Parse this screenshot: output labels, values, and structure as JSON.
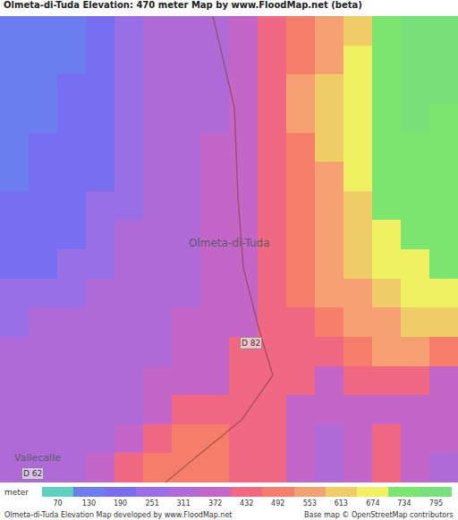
{
  "chart_data": {
    "type": "heatmap",
    "title": "Olmeta-di-Tuda Elevation: 470 meter Map by www.FloodMap.net (beta)",
    "tick_labels": false,
    "cells": [
      [
        100,
        100,
        130,
        190,
        251,
        311,
        311,
        311,
        372,
        432,
        492,
        553,
        613,
        734,
        795,
        795
      ],
      [
        100,
        100,
        130,
        190,
        251,
        311,
        311,
        311,
        372,
        432,
        492,
        553,
        674,
        734,
        795,
        795
      ],
      [
        100,
        130,
        190,
        190,
        251,
        311,
        311,
        311,
        372,
        432,
        553,
        613,
        674,
        734,
        795,
        795
      ],
      [
        100,
        130,
        190,
        190,
        251,
        311,
        311,
        311,
        372,
        432,
        553,
        613,
        674,
        734,
        795,
        734
      ],
      [
        130,
        190,
        190,
        190,
        251,
        311,
        311,
        372,
        372,
        432,
        492,
        613,
        674,
        734,
        734,
        734
      ],
      [
        130,
        190,
        190,
        190,
        251,
        311,
        311,
        372,
        372,
        432,
        492,
        553,
        674,
        734,
        734,
        734
      ],
      [
        190,
        190,
        190,
        251,
        251,
        311,
        311,
        372,
        372,
        432,
        492,
        553,
        613,
        734,
        734,
        734
      ],
      [
        190,
        190,
        190,
        251,
        311,
        311,
        311,
        372,
        372,
        432,
        492,
        553,
        613,
        674,
        734,
        734
      ],
      [
        190,
        190,
        251,
        251,
        311,
        311,
        311,
        372,
        372,
        432,
        492,
        553,
        613,
        674,
        674,
        734
      ],
      [
        251,
        251,
        251,
        311,
        311,
        311,
        311,
        372,
        372,
        432,
        492,
        553,
        553,
        613,
        674,
        674
      ],
      [
        251,
        311,
        311,
        311,
        311,
        311,
        372,
        372,
        372,
        432,
        432,
        492,
        553,
        553,
        613,
        613
      ],
      [
        311,
        311,
        311,
        311,
        311,
        311,
        372,
        372,
        432,
        432,
        432,
        432,
        492,
        553,
        553,
        492
      ],
      [
        311,
        311,
        311,
        311,
        311,
        372,
        372,
        372,
        432,
        432,
        432,
        372,
        432,
        432,
        432,
        372
      ],
      [
        311,
        311,
        311,
        311,
        311,
        372,
        432,
        432,
        432,
        432,
        372,
        372,
        372,
        372,
        372,
        372
      ],
      [
        311,
        311,
        311,
        311,
        372,
        432,
        492,
        492,
        432,
        432,
        372,
        311,
        372,
        432,
        372,
        372
      ],
      [
        311,
        311,
        311,
        372,
        432,
        492,
        492,
        492,
        432,
        432,
        372,
        311,
        372,
        432,
        372,
        311
      ]
    ],
    "colorbar": {
      "label": "meter",
      "range": [
        40,
        825
      ],
      "ticks": [
        70,
        130,
        190,
        251,
        311,
        372,
        432,
        492,
        553,
        613,
        674,
        734,
        795
      ],
      "colors": [
        "#5ecfbf",
        "#6c7df0",
        "#7a6ef0",
        "#9a6ee6",
        "#b06ad8",
        "#c466c8",
        "#f06882",
        "#f47e6a",
        "#f5a070",
        "#f0cc66",
        "#f0f060",
        "#7ae66e",
        "#78e078"
      ]
    },
    "annotations": [
      "Olmeta-di-Tuda",
      "D 82",
      "Vallecalle",
      "D 62"
    ],
    "footer": [
      "Olmeta-di-Tuda Elevation Map developed by www.FloodMap.net",
      "Base map © OpenStreetMap contributors"
    ]
  }
}
